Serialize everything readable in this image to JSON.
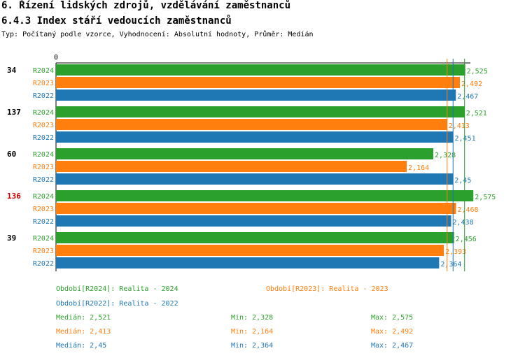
{
  "header": {
    "title": "6. Řízení lidských zdrojů, vzdělávání zaměstnanců",
    "subtitle": "6.4.3 Index stáří vedoucích zaměstnanců",
    "type_line": "Typ: Počítaný podle vzorce, Vyhodnocení: Absolutní hodnoty, Průměr: Medián"
  },
  "colors": {
    "R2024": "#2ca02c",
    "R2023": "#ff7f0e",
    "R2022": "#1f77b4",
    "highlight": "#cc0000"
  },
  "chart_data": {
    "type": "bar",
    "orientation": "horizontal",
    "axis_zero_label": "0",
    "groups": [
      {
        "label": "34",
        "highlight": false
      },
      {
        "label": "137",
        "highlight": false
      },
      {
        "label": "60",
        "highlight": false
      },
      {
        "label": "136",
        "highlight": true
      },
      {
        "label": "39",
        "highlight": false
      }
    ],
    "series": [
      {
        "name": "R2024",
        "values": [
          2.525,
          2.521,
          2.328,
          2.575,
          2.456
        ],
        "labels": [
          "2,525",
          "2,521",
          "2,328",
          "2,575",
          "2,456"
        ],
        "median": 2.521
      },
      {
        "name": "R2023",
        "values": [
          2.492,
          2.413,
          2.164,
          2.468,
          2.393
        ],
        "labels": [
          "2,492",
          "2,413",
          "2,164",
          "2,468",
          "2,393"
        ],
        "median": 2.413
      },
      {
        "name": "R2022",
        "values": [
          2.467,
          2.451,
          2.45,
          2.438,
          2.364
        ],
        "labels": [
          "2,467",
          "2,451",
          "2,45",
          "2,438",
          "2,364"
        ],
        "median": 2.45
      }
    ],
    "xlim": [
      0,
      2.6
    ]
  },
  "legend": {
    "r2024": "Období[R2024]: Realita - 2024",
    "r2023": "Období[R2023]: Realita - 2023",
    "r2022": "Období[R2022]: Realita - 2022"
  },
  "stats": {
    "r2024": {
      "median": "Medián: 2,521",
      "min": "Min: 2,328",
      "max": "Max: 2,575"
    },
    "r2023": {
      "median": "Medián: 2,413",
      "min": "Min: 2,164",
      "max": "Max: 2,492"
    },
    "r2022": {
      "median": "Medián: 2,45",
      "min": "Min: 2,364",
      "max": "Max: 2,467"
    }
  }
}
